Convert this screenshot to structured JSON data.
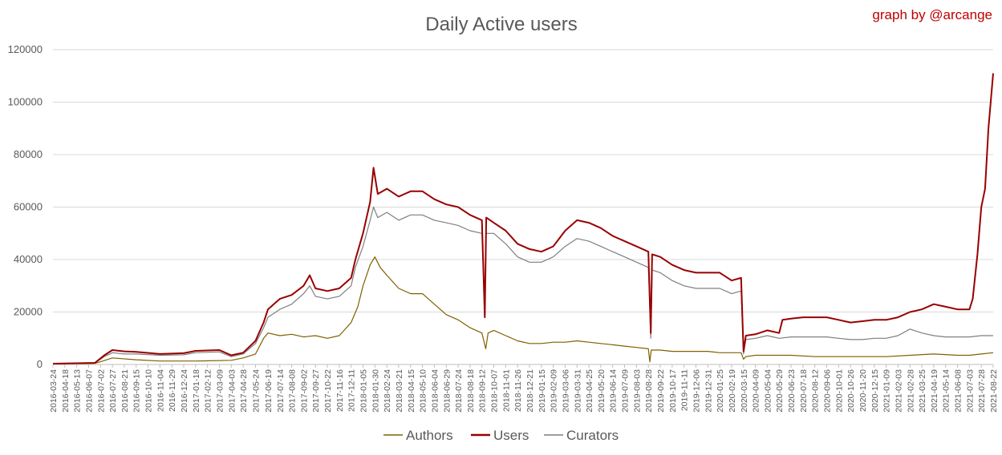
{
  "chart_data": {
    "type": "line",
    "title": "Daily Active users",
    "credit": "graph by @arcange",
    "xlabel": "",
    "ylabel": "",
    "ylim": [
      0,
      120000
    ],
    "yticks": [
      0,
      20000,
      40000,
      60000,
      80000,
      100000,
      120000
    ],
    "grid": true,
    "legend_position": "bottom",
    "x_tick_labels": [
      "2016-03-24",
      "2016-04-18",
      "2016-05-13",
      "2016-06-07",
      "2016-07-02",
      "2016-07-27",
      "2016-08-21",
      "2016-09-15",
      "2016-10-10",
      "2016-11-04",
      "2016-11-29",
      "2016-12-24",
      "2017-01-18",
      "2017-02-12",
      "2017-03-09",
      "2017-04-03",
      "2017-04-28",
      "2017-05-24",
      "2017-06-19",
      "2017-07-14",
      "2017-08-08",
      "2017-09-02",
      "2017-09-27",
      "2017-10-22",
      "2017-11-16",
      "2017-12-11",
      "2018-01-05",
      "2018-01-30",
      "2018-02-24",
      "2018-03-21",
      "2018-04-15",
      "2018-05-10",
      "2018-06-04",
      "2018-06-29",
      "2018-07-24",
      "2018-08-18",
      "2018-09-12",
      "2018-10-07",
      "2018-11-01",
      "2018-11-26",
      "2018-12-21",
      "2019-01-15",
      "2019-02-09",
      "2019-03-06",
      "2019-03-31",
      "2019-04-25",
      "2019-05-20",
      "2019-06-14",
      "2019-07-09",
      "2019-08-03",
      "2019-08-28",
      "2019-09-22",
      "2019-10-17",
      "2019-11-11",
      "2019-12-06",
      "2019-12-31",
      "2020-01-25",
      "2020-02-19",
      "2020-03-15",
      "2020-04-09",
      "2020-05-04",
      "2020-05-29",
      "2020-06-23",
      "2020-07-18",
      "2020-08-12",
      "2020-09-06",
      "2020-10-01",
      "2020-10-26",
      "2020-11-20",
      "2020-12-15",
      "2021-01-09",
      "2021-02-03",
      "2021-02-28",
      "2021-03-25",
      "2021-04-19",
      "2021-05-14",
      "2021-06-08",
      "2021-07-03",
      "2021-07-28",
      "2021-08-22"
    ],
    "series": [
      {
        "name": "Authors",
        "color": "#7f6000",
        "points": [
          [
            "2016-03-24",
            200
          ],
          [
            "2016-06-20",
            400
          ],
          [
            "2016-07-10",
            1500
          ],
          [
            "2016-07-27",
            2500
          ],
          [
            "2016-09-15",
            1800
          ],
          [
            "2016-11-04",
            1300
          ],
          [
            "2017-01-18",
            1300
          ],
          [
            "2017-04-03",
            1600
          ],
          [
            "2017-04-28",
            2500
          ],
          [
            "2017-05-24",
            4000
          ],
          [
            "2017-06-10",
            10000
          ],
          [
            "2017-06-19",
            12000
          ],
          [
            "2017-07-14",
            11000
          ],
          [
            "2017-08-08",
            11500
          ],
          [
            "2017-09-02",
            10500
          ],
          [
            "2017-09-27",
            11000
          ],
          [
            "2017-10-22",
            10000
          ],
          [
            "2017-11-16",
            11000
          ],
          [
            "2017-12-11",
            16000
          ],
          [
            "2017-12-25",
            22000
          ],
          [
            "2018-01-05",
            30000
          ],
          [
            "2018-01-20",
            38000
          ],
          [
            "2018-01-30",
            41000
          ],
          [
            "2018-02-10",
            37000
          ],
          [
            "2018-02-24",
            34000
          ],
          [
            "2018-03-21",
            29000
          ],
          [
            "2018-04-15",
            27000
          ],
          [
            "2018-05-10",
            27000
          ],
          [
            "2018-06-04",
            23000
          ],
          [
            "2018-06-29",
            19000
          ],
          [
            "2018-07-24",
            17000
          ],
          [
            "2018-08-18",
            14000
          ],
          [
            "2018-09-12",
            12000
          ],
          [
            "2018-09-20",
            6000
          ],
          [
            "2018-09-25",
            12000
          ],
          [
            "2018-10-07",
            13000
          ],
          [
            "2018-11-01",
            11000
          ],
          [
            "2018-11-26",
            9000
          ],
          [
            "2018-12-21",
            8000
          ],
          [
            "2019-01-15",
            8000
          ],
          [
            "2019-02-09",
            8500
          ],
          [
            "2019-03-06",
            8500
          ],
          [
            "2019-03-31",
            9000
          ],
          [
            "2019-04-25",
            8500
          ],
          [
            "2019-05-20",
            8000
          ],
          [
            "2019-06-14",
            7500
          ],
          [
            "2019-07-09",
            7000
          ],
          [
            "2019-08-03",
            6500
          ],
          [
            "2019-08-28",
            6000
          ],
          [
            "2019-08-31",
            1000
          ],
          [
            "2019-09-03",
            5500
          ],
          [
            "2019-09-22",
            5500
          ],
          [
            "2019-10-17",
            5000
          ],
          [
            "2019-11-11",
            5000
          ],
          [
            "2019-12-06",
            5000
          ],
          [
            "2019-12-31",
            5000
          ],
          [
            "2020-01-25",
            4500
          ],
          [
            "2020-02-19",
            4500
          ],
          [
            "2020-03-10",
            4500
          ],
          [
            "2020-03-15",
            2000
          ],
          [
            "2020-03-20",
            3000
          ],
          [
            "2020-04-09",
            3500
          ],
          [
            "2020-05-04",
            3500
          ],
          [
            "2020-06-23",
            3500
          ],
          [
            "2020-08-12",
            3000
          ],
          [
            "2020-10-01",
            3000
          ],
          [
            "2020-11-20",
            3000
          ],
          [
            "2021-01-09",
            3000
          ],
          [
            "2021-02-28",
            3500
          ],
          [
            "2021-04-19",
            4000
          ],
          [
            "2021-06-08",
            3500
          ],
          [
            "2021-07-03",
            3500
          ],
          [
            "2021-07-28",
            4000
          ],
          [
            "2021-08-22",
            4500
          ]
        ]
      },
      {
        "name": "Users",
        "color": "#990000",
        "points": [
          [
            "2016-03-24",
            300
          ],
          [
            "2016-06-20",
            600
          ],
          [
            "2016-07-10",
            3500
          ],
          [
            "2016-07-27",
            5500
          ],
          [
            "2016-08-21",
            5000
          ],
          [
            "2016-09-15",
            4800
          ],
          [
            "2016-11-04",
            4000
          ],
          [
            "2016-12-24",
            4300
          ],
          [
            "2017-01-18",
            5200
          ],
          [
            "2017-03-09",
            5500
          ],
          [
            "2017-04-03",
            3500
          ],
          [
            "2017-04-28",
            4500
          ],
          [
            "2017-05-24",
            9000
          ],
          [
            "2017-06-10",
            16000
          ],
          [
            "2017-06-19",
            21000
          ],
          [
            "2017-07-14",
            25000
          ],
          [
            "2017-08-08",
            26500
          ],
          [
            "2017-09-02",
            30000
          ],
          [
            "2017-09-15",
            34000
          ],
          [
            "2017-09-27",
            29000
          ],
          [
            "2017-10-22",
            28000
          ],
          [
            "2017-11-16",
            29000
          ],
          [
            "2017-12-11",
            33000
          ],
          [
            "2017-12-20",
            40000
          ],
          [
            "2018-01-05",
            50000
          ],
          [
            "2018-01-20",
            62000
          ],
          [
            "2018-01-27",
            75000
          ],
          [
            "2018-02-05",
            65000
          ],
          [
            "2018-02-24",
            67000
          ],
          [
            "2018-03-21",
            64000
          ],
          [
            "2018-04-15",
            66000
          ],
          [
            "2018-05-10",
            66000
          ],
          [
            "2018-06-04",
            63000
          ],
          [
            "2018-06-29",
            61000
          ],
          [
            "2018-07-24",
            60000
          ],
          [
            "2018-08-18",
            57000
          ],
          [
            "2018-09-12",
            55000
          ],
          [
            "2018-09-18",
            18000
          ],
          [
            "2018-09-21",
            56000
          ],
          [
            "2018-10-07",
            54000
          ],
          [
            "2018-11-01",
            51000
          ],
          [
            "2018-11-26",
            46000
          ],
          [
            "2018-12-21",
            44000
          ],
          [
            "2019-01-15",
            43000
          ],
          [
            "2019-02-09",
            45000
          ],
          [
            "2019-03-06",
            51000
          ],
          [
            "2019-03-31",
            55000
          ],
          [
            "2019-04-25",
            54000
          ],
          [
            "2019-05-20",
            52000
          ],
          [
            "2019-06-14",
            49000
          ],
          [
            "2019-07-09",
            47000
          ],
          [
            "2019-08-03",
            45000
          ],
          [
            "2019-08-28",
            43000
          ],
          [
            "2019-09-02",
            12000
          ],
          [
            "2019-09-05",
            42000
          ],
          [
            "2019-09-22",
            41000
          ],
          [
            "2019-10-17",
            38000
          ],
          [
            "2019-11-11",
            36000
          ],
          [
            "2019-12-06",
            35000
          ],
          [
            "2019-12-31",
            35000
          ],
          [
            "2020-01-25",
            35000
          ],
          [
            "2020-02-19",
            32000
          ],
          [
            "2020-03-10",
            33000
          ],
          [
            "2020-03-15",
            5000
          ],
          [
            "2020-03-20",
            11000
          ],
          [
            "2020-04-09",
            11500
          ],
          [
            "2020-05-04",
            13000
          ],
          [
            "2020-05-29",
            12000
          ],
          [
            "2020-06-05",
            17000
          ],
          [
            "2020-06-23",
            17500
          ],
          [
            "2020-07-18",
            18000
          ],
          [
            "2020-08-12",
            18000
          ],
          [
            "2020-09-06",
            18000
          ],
          [
            "2020-10-01",
            17000
          ],
          [
            "2020-10-26",
            16000
          ],
          [
            "2020-11-20",
            16500
          ],
          [
            "2020-12-15",
            17000
          ],
          [
            "2021-01-09",
            17000
          ],
          [
            "2021-02-03",
            18000
          ],
          [
            "2021-02-28",
            20000
          ],
          [
            "2021-03-25",
            21000
          ],
          [
            "2021-04-19",
            23000
          ],
          [
            "2021-05-14",
            22000
          ],
          [
            "2021-06-08",
            21000
          ],
          [
            "2021-07-03",
            21000
          ],
          [
            "2021-07-10",
            25000
          ],
          [
            "2021-07-20",
            42000
          ],
          [
            "2021-07-28",
            60000
          ],
          [
            "2021-08-05",
            67000
          ],
          [
            "2021-08-12",
            90000
          ],
          [
            "2021-08-22",
            111000
          ]
        ]
      },
      {
        "name": "Curators",
        "color": "#7f7f7f",
        "points": [
          [
            "2016-03-24",
            250
          ],
          [
            "2016-06-20",
            500
          ],
          [
            "2016-07-10",
            3000
          ],
          [
            "2016-07-27",
            4500
          ],
          [
            "2016-08-21",
            4000
          ],
          [
            "2016-09-15",
            4000
          ],
          [
            "2016-11-04",
            3500
          ],
          [
            "2016-12-24",
            3700
          ],
          [
            "2017-01-18",
            4500
          ],
          [
            "2017-03-09",
            4800
          ],
          [
            "2017-04-03",
            3000
          ],
          [
            "2017-04-28",
            4000
          ],
          [
            "2017-05-24",
            8000
          ],
          [
            "2017-06-10",
            14000
          ],
          [
            "2017-06-19",
            18000
          ],
          [
            "2017-07-14",
            21000
          ],
          [
            "2017-08-08",
            23000
          ],
          [
            "2017-09-02",
            27000
          ],
          [
            "2017-09-15",
            30000
          ],
          [
            "2017-09-27",
            26000
          ],
          [
            "2017-10-22",
            25000
          ],
          [
            "2017-11-16",
            26000
          ],
          [
            "2017-12-11",
            30000
          ],
          [
            "2017-12-20",
            37000
          ],
          [
            "2018-01-05",
            45000
          ],
          [
            "2018-01-20",
            55000
          ],
          [
            "2018-01-27",
            60000
          ],
          [
            "2018-02-05",
            56000
          ],
          [
            "2018-02-24",
            58000
          ],
          [
            "2018-03-21",
            55000
          ],
          [
            "2018-04-15",
            57000
          ],
          [
            "2018-05-10",
            57000
          ],
          [
            "2018-06-04",
            55000
          ],
          [
            "2018-06-29",
            54000
          ],
          [
            "2018-07-24",
            53000
          ],
          [
            "2018-08-18",
            51000
          ],
          [
            "2018-09-12",
            50000
          ],
          [
            "2018-09-18",
            20000
          ],
          [
            "2018-09-21",
            50000
          ],
          [
            "2018-10-07",
            50000
          ],
          [
            "2018-11-01",
            46000
          ],
          [
            "2018-11-26",
            41000
          ],
          [
            "2018-12-21",
            39000
          ],
          [
            "2019-01-15",
            39000
          ],
          [
            "2019-02-09",
            41000
          ],
          [
            "2019-03-06",
            45000
          ],
          [
            "2019-03-31",
            48000
          ],
          [
            "2019-04-25",
            47000
          ],
          [
            "2019-05-20",
            45000
          ],
          [
            "2019-06-14",
            43000
          ],
          [
            "2019-07-09",
            41000
          ],
          [
            "2019-08-03",
            39000
          ],
          [
            "2019-08-28",
            37000
          ],
          [
            "2019-09-02",
            10000
          ],
          [
            "2019-09-05",
            36000
          ],
          [
            "2019-09-22",
            35000
          ],
          [
            "2019-10-17",
            32000
          ],
          [
            "2019-11-11",
            30000
          ],
          [
            "2019-12-06",
            29000
          ],
          [
            "2019-12-31",
            29000
          ],
          [
            "2020-01-25",
            29000
          ],
          [
            "2020-02-19",
            27000
          ],
          [
            "2020-03-10",
            28000
          ],
          [
            "2020-03-15",
            4000
          ],
          [
            "2020-03-20",
            9500
          ],
          [
            "2020-04-09",
            10000
          ],
          [
            "2020-05-04",
            11000
          ],
          [
            "2020-05-29",
            10000
          ],
          [
            "2020-06-23",
            10500
          ],
          [
            "2020-07-18",
            10500
          ],
          [
            "2020-08-12",
            10500
          ],
          [
            "2020-09-06",
            10500
          ],
          [
            "2020-10-01",
            10000
          ],
          [
            "2020-10-26",
            9500
          ],
          [
            "2020-11-20",
            9500
          ],
          [
            "2020-12-15",
            10000
          ],
          [
            "2021-01-09",
            10000
          ],
          [
            "2021-02-03",
            11000
          ],
          [
            "2021-02-28",
            13500
          ],
          [
            "2021-03-25",
            12000
          ],
          [
            "2021-04-19",
            11000
          ],
          [
            "2021-05-14",
            10500
          ],
          [
            "2021-06-08",
            10500
          ],
          [
            "2021-07-03",
            10500
          ],
          [
            "2021-07-28",
            11000
          ],
          [
            "2021-08-22",
            11000
          ]
        ]
      }
    ]
  }
}
